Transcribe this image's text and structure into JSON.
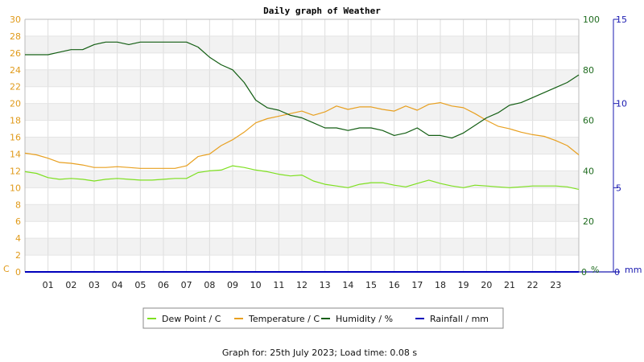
{
  "chart_data": {
    "type": "line",
    "title": "Daily graph of Weather",
    "footer": "Graph for: 25th July 2023; Load time: 0.08 s",
    "x_ticks": [
      "01",
      "02",
      "03",
      "04",
      "05",
      "06",
      "07",
      "08",
      "09",
      "10",
      "11",
      "12",
      "13",
      "14",
      "15",
      "16",
      "17",
      "18",
      "19",
      "20",
      "21",
      "22",
      "23"
    ],
    "xlim": [
      0,
      24
    ],
    "axes": {
      "left": {
        "unit": "C",
        "ticks": [
          0,
          2,
          4,
          6,
          8,
          10,
          12,
          14,
          16,
          18,
          20,
          22,
          24,
          26,
          28,
          30
        ],
        "ylim": [
          0,
          30
        ]
      },
      "humidity": {
        "unit": "%",
        "ticks": [
          0,
          20,
          40,
          60,
          80,
          100
        ],
        "ylim": [
          0,
          100
        ]
      },
      "rainfall": {
        "unit": "mm",
        "ticks": [
          0,
          5,
          10,
          15
        ],
        "ylim": [
          0,
          15
        ]
      }
    },
    "legend": [
      "Dew Point / C",
      "Temperature / C",
      "Humidity / %",
      "Rainfall / mm"
    ],
    "series": [
      {
        "name": "Dew Point / C",
        "axis": "left",
        "color": "#7ee020",
        "x": [
          0,
          0.5,
          1,
          1.5,
          2,
          2.5,
          3,
          3.5,
          4,
          4.5,
          5,
          5.5,
          6,
          6.5,
          7,
          7.5,
          8,
          8.5,
          9,
          9.5,
          10,
          10.5,
          11,
          11.5,
          12,
          12.5,
          13,
          13.5,
          14,
          14.5,
          15,
          15.5,
          16,
          16.5,
          17,
          17.5,
          18,
          18.5,
          19,
          19.5,
          20,
          20.5,
          21,
          21.5,
          22,
          22.5,
          23,
          23.5,
          24
        ],
        "values": [
          11.9,
          11.7,
          11.2,
          11.0,
          11.1,
          11.0,
          10.8,
          11.0,
          11.1,
          11.0,
          10.9,
          10.9,
          11.0,
          11.1,
          11.1,
          11.8,
          12.0,
          12.1,
          12.6,
          12.4,
          12.1,
          11.9,
          11.6,
          11.4,
          11.5,
          10.8,
          10.4,
          10.2,
          10.0,
          10.4,
          10.6,
          10.6,
          10.3,
          10.1,
          10.5,
          10.9,
          10.5,
          10.2,
          10.0,
          10.3,
          10.2,
          10.1,
          10.0,
          10.1,
          10.2,
          10.2,
          10.2,
          10.1,
          9.8
        ]
      },
      {
        "name": "Temperature / C",
        "axis": "left",
        "color": "#e8a020",
        "x": [
          0,
          0.5,
          1,
          1.5,
          2,
          2.5,
          3,
          3.5,
          4,
          4.5,
          5,
          5.5,
          6,
          6.5,
          7,
          7.5,
          8,
          8.5,
          9,
          9.5,
          10,
          10.5,
          11,
          11.5,
          12,
          12.5,
          13,
          13.5,
          14,
          14.5,
          15,
          15.5,
          16,
          16.5,
          17,
          17.5,
          18,
          18.5,
          19,
          19.5,
          20,
          20.5,
          21,
          21.5,
          22,
          22.5,
          23,
          23.5,
          24
        ],
        "values": [
          14.1,
          13.9,
          13.5,
          13.0,
          12.9,
          12.7,
          12.4,
          12.4,
          12.5,
          12.4,
          12.3,
          12.3,
          12.3,
          12.3,
          12.6,
          13.7,
          14.0,
          15.0,
          15.7,
          16.6,
          17.7,
          18.2,
          18.5,
          18.8,
          19.1,
          18.6,
          19.0,
          19.7,
          19.3,
          19.6,
          19.6,
          19.3,
          19.1,
          19.7,
          19.2,
          19.9,
          20.1,
          19.7,
          19.5,
          18.8,
          18.0,
          17.3,
          17.0,
          16.6,
          16.3,
          16.1,
          15.6,
          15.0,
          13.9
        ]
      },
      {
        "name": "Humidity / %",
        "axis": "humidity",
        "color": "#135e13",
        "x": [
          0,
          0.5,
          1,
          1.5,
          2,
          2.5,
          3,
          3.5,
          4,
          4.5,
          5,
          5.5,
          6,
          6.5,
          7,
          7.5,
          8,
          8.5,
          9,
          9.5,
          10,
          10.5,
          11,
          11.5,
          12,
          12.5,
          13,
          13.5,
          14,
          14.5,
          15,
          15.5,
          16,
          16.5,
          17,
          17.5,
          18,
          18.5,
          19,
          19.5,
          20,
          20.5,
          21,
          21.5,
          22,
          22.5,
          23,
          23.5,
          24
        ],
        "values": [
          86,
          86,
          86,
          87,
          88,
          88,
          90,
          91,
          91,
          90,
          91,
          91,
          91,
          91,
          91,
          89,
          85,
          82,
          80,
          75,
          68,
          65,
          64,
          62,
          61,
          59,
          57,
          57,
          56,
          57,
          57,
          56,
          54,
          55,
          57,
          54,
          54,
          53,
          55,
          58,
          61,
          63,
          66,
          67,
          69,
          71,
          73,
          75,
          78
        ]
      },
      {
        "name": "Rainfall / mm",
        "axis": "rainfall",
        "color": "#0000bb",
        "x": [
          0,
          24
        ],
        "values": [
          0,
          0
        ]
      }
    ]
  }
}
